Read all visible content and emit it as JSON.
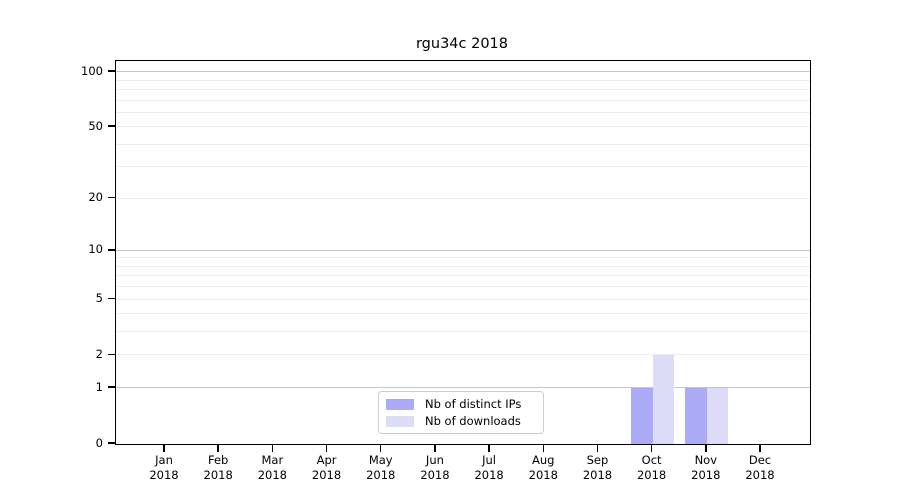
{
  "title": "rgu34c 2018",
  "legend": {
    "items": [
      {
        "label": "Nb of distinct IPs",
        "color": "#aaaaf7"
      },
      {
        "label": "Nb of downloads",
        "color": "#dcdcf9"
      }
    ]
  },
  "chart_data": {
    "type": "bar",
    "title": "rgu34c 2018",
    "x": {
      "months": [
        "Jan",
        "Feb",
        "Mar",
        "Apr",
        "May",
        "Jun",
        "Jul",
        "Aug",
        "Sep",
        "Oct",
        "Nov",
        "Dec"
      ],
      "year": "2018"
    },
    "series": [
      {
        "name": "Nb of distinct IPs",
        "color": "#aaaaf7",
        "values": [
          0,
          0,
          0,
          0,
          0,
          0,
          0,
          0,
          0,
          1,
          1,
          0
        ]
      },
      {
        "name": "Nb of downloads",
        "color": "#dcdcf9",
        "values": [
          0,
          0,
          0,
          0,
          0,
          0,
          0,
          0,
          0,
          2,
          1,
          0
        ]
      }
    ],
    "y_axis": {
      "scale": "log10(1+v)",
      "tick_values": [
        0,
        1,
        2,
        5,
        10,
        20,
        50,
        100
      ],
      "tick_labels": [
        "0",
        "1",
        "2",
        "5",
        "10",
        "20",
        "50",
        "100"
      ],
      "max": 115
    },
    "grid": {
      "minor_values": [
        2,
        3,
        4,
        5,
        6,
        7,
        8,
        9,
        20,
        30,
        40,
        50,
        60,
        70,
        80,
        90
      ],
      "major_values": [
        1,
        10,
        100
      ],
      "minor_color": "#ededed",
      "major_color": "#c6c6c6"
    },
    "legend_position": "lower center",
    "bar_group": "side-by-side"
  }
}
